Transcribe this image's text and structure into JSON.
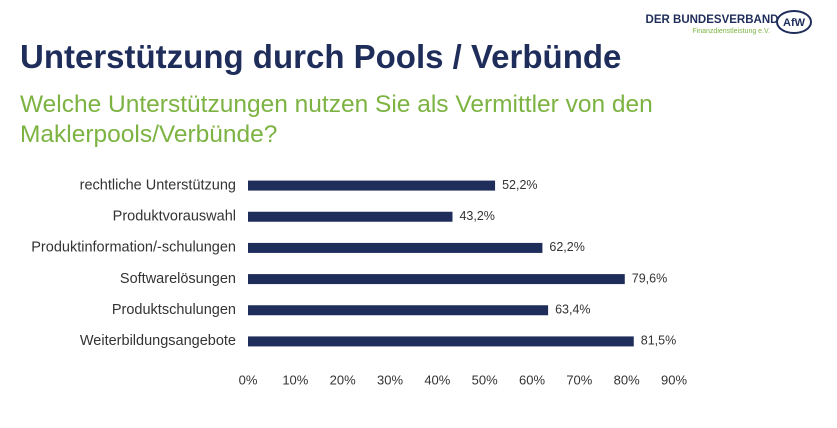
{
  "chart_data": {
    "type": "barh",
    "title": "Unterstützung durch Pools / Verbünde",
    "subtitle": "Welche Unterstützungen nutzen Sie als Vermittler von den Maklerpools/Verbünde?",
    "brand": "DER BUNDESVERBAND",
    "brand_subtitle": "Finanzdienstleistung e.V.",
    "logo": "AfW",
    "categories": [
      "rechtliche Unterstützung",
      "Produktvorauswahl",
      "Produktinformation/-schulungen",
      "Softwarelösungen",
      "Produktschulungen",
      "Weiterbildungsangebote"
    ],
    "values": [
      52.2,
      43.2,
      62.2,
      79.6,
      63.4,
      81.5
    ],
    "value_labels": [
      "52,2%",
      "43,2%",
      "62,2%",
      "79,6%",
      "63,4%",
      "81,5%"
    ],
    "color": "#1f2d5a",
    "xlim": [
      0,
      90
    ],
    "xticks": [
      {
        "value": 0,
        "label": "0%"
      },
      {
        "value": 10,
        "label": "10%"
      },
      {
        "value": 20,
        "label": "20%"
      },
      {
        "value": 30,
        "label": "30%"
      },
      {
        "value": 40,
        "label": "40%"
      },
      {
        "value": 50,
        "label": "50%"
      },
      {
        "value": 60,
        "label": "60%"
      },
      {
        "value": 70,
        "label": "70%"
      },
      {
        "value": 80,
        "label": "80%"
      },
      {
        "value": 90,
        "label": "90%"
      }
    ],
    "grid": false
  }
}
